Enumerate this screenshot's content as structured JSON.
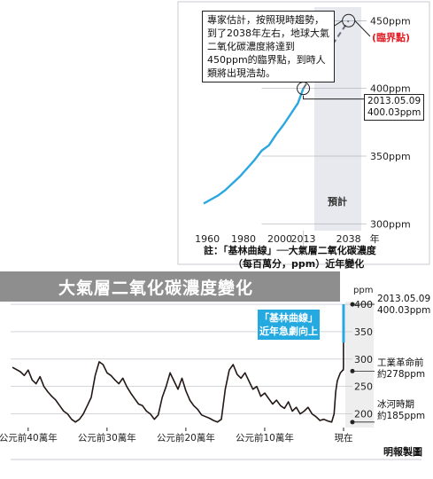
{
  "main_title": "大氣層二氧化碳濃度變化",
  "inset_note": "專家估計，按照現時趨勢，到了2038年左右，地球大氣二氧化碳濃度將達到450ppm的臨界點，到時人類將出現浩劫。",
  "inset_footnote_line1": "註：「基林曲線」──大氣層二氧化碳濃度",
  "inset_footnote_line2": "（每百萬分，ppm）近年變化",
  "forecast_label": "預計",
  "critical_point_label": "(臨界點)",
  "inset_point_date": "2013.05.09",
  "inset_point_value": "400.03ppm",
  "keeling_callout_line1": "「基林曲線」",
  "keeling_callout_line2": "近年急劇向上",
  "main_point_date": "2013.05.09",
  "main_point_value": "400.03ppm",
  "industrial_label_line1": "工業革命前",
  "industrial_label_line2": "約278ppm",
  "ice_age_label_line1": "冰河時期",
  "ice_age_label_line2": "約185ppm",
  "credit": "明報製圖",
  "colors": {
    "keeling_line": "#2aa7e0",
    "critical_text": "#e01f26",
    "history_line": "#231815",
    "title_band": "#8e8e8e",
    "forecast_shade": "#e7e9ee"
  },
  "chart_data": [
    {
      "type": "line",
      "title": "「基林曲線」",
      "x_ticks": [
        1960,
        1980,
        2000,
        2013,
        2038
      ],
      "x_unit": "年",
      "y_ticks": [
        "300ppm",
        "350ppm",
        "400ppm",
        "450ppm"
      ],
      "xlim": [
        1957,
        2045
      ],
      "ylim": [
        295,
        460
      ],
      "series": [
        {
          "name": "observed",
          "x": [
            1958,
            1962,
            1966,
            1970,
            1974,
            1978,
            1982,
            1986,
            1990,
            1994,
            1998,
            2002,
            2006,
            2010,
            2013
          ],
          "values": [
            315,
            318,
            321,
            325,
            330,
            335,
            341,
            347,
            354,
            358,
            366,
            373,
            381,
            389,
            400
          ]
        },
        {
          "name": "forecast",
          "x": [
            2013,
            2038
          ],
          "values": [
            400,
            450
          ]
        }
      ],
      "forecast_range": [
        2013,
        2045
      ]
    },
    {
      "type": "line",
      "title": "大氣層二氧化碳濃度變化",
      "x_ticks": [
        "公元前40萬年",
        "公元前30萬年",
        "公元前20萬年",
        "公元前10萬年",
        "現在"
      ],
      "y_unit": "ppm",
      "y_ticks": [
        200,
        250,
        300,
        350,
        400
      ],
      "xlim": [
        -420000,
        0
      ],
      "ylim": [
        175,
        405
      ],
      "grid": true,
      "series": [
        {
          "name": "co2",
          "x": [
            -420000,
            -410000,
            -405000,
            -400000,
            -395000,
            -390000,
            -385000,
            -380000,
            -375000,
            -370000,
            -365000,
            -360000,
            -355000,
            -350000,
            -345000,
            -340000,
            -335000,
            -330000,
            -325000,
            -320000,
            -315000,
            -310000,
            -305000,
            -300000,
            -295000,
            -290000,
            -285000,
            -280000,
            -275000,
            -270000,
            -265000,
            -260000,
            -255000,
            -250000,
            -245000,
            -240000,
            -235000,
            -230000,
            -225000,
            -220000,
            -215000,
            -210000,
            -205000,
            -200000,
            -195000,
            -190000,
            -185000,
            -180000,
            -175000,
            -170000,
            -165000,
            -160000,
            -155000,
            -150000,
            -145000,
            -140000,
            -135000,
            -130000,
            -125000,
            -120000,
            -115000,
            -110000,
            -105000,
            -100000,
            -95000,
            -90000,
            -85000,
            -80000,
            -75000,
            -70000,
            -65000,
            -60000,
            -55000,
            -50000,
            -45000,
            -40000,
            -35000,
            -30000,
            -25000,
            -20000,
            -15000,
            -12000,
            -10000,
            -8000,
            -6000,
            -4000,
            -2000,
            -1000,
            -300,
            -150,
            -60,
            0
          ],
          "values": [
            285,
            277,
            270,
            280,
            262,
            255,
            268,
            250,
            240,
            232,
            225,
            215,
            205,
            200,
            190,
            185,
            190,
            200,
            215,
            230,
            270,
            295,
            290,
            275,
            270,
            262,
            255,
            265,
            250,
            238,
            228,
            218,
            215,
            205,
            200,
            190,
            198,
            230,
            250,
            275,
            260,
            245,
            265,
            242,
            225,
            215,
            208,
            198,
            195,
            192,
            188,
            185,
            190,
            245,
            280,
            290,
            272,
            265,
            275,
            260,
            245,
            250,
            232,
            238,
            228,
            218,
            225,
            215,
            210,
            222,
            205,
            212,
            200,
            205,
            212,
            200,
            195,
            188,
            190,
            187,
            185,
            200,
            240,
            260,
            268,
            275,
            278,
            280,
            280,
            285,
            330,
            400
          ]
        }
      ]
    }
  ]
}
